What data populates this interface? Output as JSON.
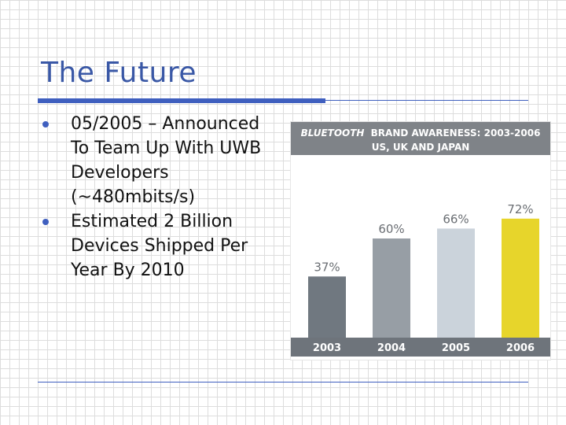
{
  "slide": {
    "title": "The Future",
    "bullets": [
      "05/2005 – Announced To Team Up With UWB Developers (~480mbits/s)",
      "Estimated 2 Billion Devices Shipped Per Year By 2010"
    ]
  },
  "chart_data": {
    "type": "bar",
    "title_brand": "BLUETOOTH",
    "title_rest": "BRAND AWARENESS: 2003-2006",
    "subtitle": "US, UK AND JAPAN",
    "categories": [
      "2003",
      "2004",
      "2005",
      "2006"
    ],
    "values": [
      37,
      60,
      66,
      72
    ],
    "value_labels": [
      "37%",
      "60%",
      "66%",
      "72%"
    ],
    "bar_colors": [
      "#707880",
      "#979ea5",
      "#cbd3db",
      "#e7d52b"
    ],
    "header_color": "#7f8388",
    "axis_band_color": "#6e747b",
    "ylim": [
      0,
      100
    ]
  }
}
